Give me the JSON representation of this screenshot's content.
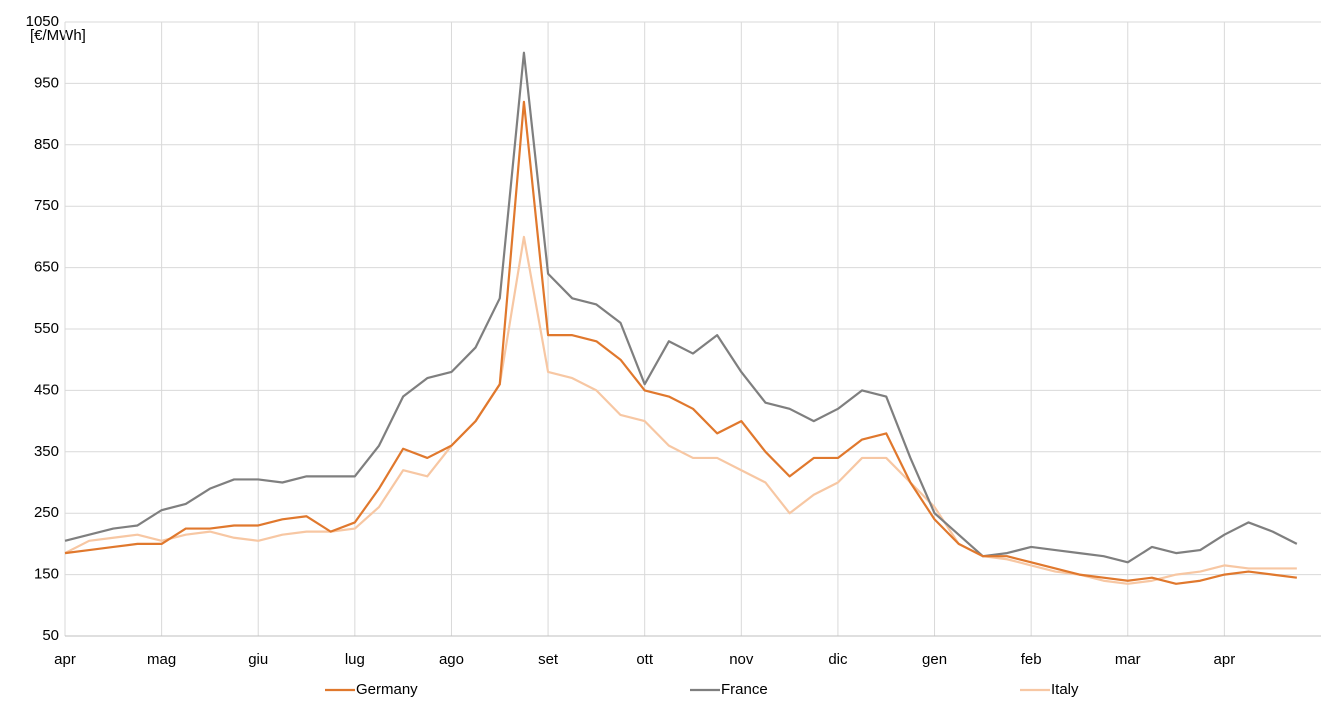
{
  "chart_data": {
    "type": "line",
    "y_label": "[€/MWh]",
    "categories": [
      "apr",
      null,
      null,
      null,
      "mag",
      null,
      null,
      null,
      "giu",
      null,
      null,
      null,
      "lug",
      null,
      null,
      null,
      "ago",
      null,
      null,
      null,
      "set",
      null,
      null,
      null,
      "ott",
      null,
      null,
      null,
      "nov",
      null,
      null,
      null,
      "dic",
      null,
      null,
      null,
      "gen",
      null,
      null,
      null,
      "feb",
      null,
      null,
      null,
      "mar",
      null,
      null,
      null,
      "apr",
      null,
      null,
      null
    ],
    "ylim": [
      50,
      1050
    ],
    "yticks": [
      50,
      150,
      250,
      350,
      450,
      550,
      650,
      750,
      850,
      950,
      1050
    ],
    "grid": true,
    "legend": "bottom",
    "series": [
      {
        "name": "Germany",
        "color": "#e0782d",
        "values": [
          185,
          190,
          195,
          200,
          200,
          225,
          225,
          230,
          230,
          240,
          245,
          220,
          235,
          290,
          355,
          340,
          360,
          400,
          460,
          920,
          540,
          540,
          530,
          500,
          450,
          440,
          420,
          380,
          400,
          350,
          310,
          340,
          340,
          370,
          380,
          300,
          240,
          200,
          180,
          180,
          170,
          160,
          150,
          145,
          140,
          145,
          135,
          140,
          150,
          155,
          150,
          145
        ]
      },
      {
        "name": "France",
        "color": "#7f7f7f",
        "values": [
          205,
          215,
          225,
          230,
          255,
          265,
          290,
          305,
          305,
          300,
          310,
          310,
          310,
          360,
          440,
          470,
          480,
          520,
          600,
          1000,
          640,
          600,
          590,
          560,
          460,
          530,
          510,
          540,
          480,
          430,
          420,
          400,
          420,
          450,
          440,
          340,
          250,
          215,
          180,
          185,
          195,
          190,
          185,
          180,
          170,
          195,
          185,
          190,
          215,
          235,
          220,
          200
        ]
      },
      {
        "name": "Italy",
        "color": "#f7c7a3",
        "values": [
          185,
          205,
          210,
          215,
          205,
          215,
          220,
          210,
          205,
          215,
          220,
          220,
          225,
          260,
          320,
          310,
          360,
          400,
          460,
          700,
          480,
          470,
          450,
          410,
          400,
          360,
          340,
          340,
          320,
          300,
          250,
          280,
          300,
          340,
          340,
          300,
          260,
          200,
          180,
          175,
          165,
          155,
          150,
          140,
          135,
          140,
          150,
          155,
          165,
          160,
          160,
          160
        ]
      }
    ]
  }
}
